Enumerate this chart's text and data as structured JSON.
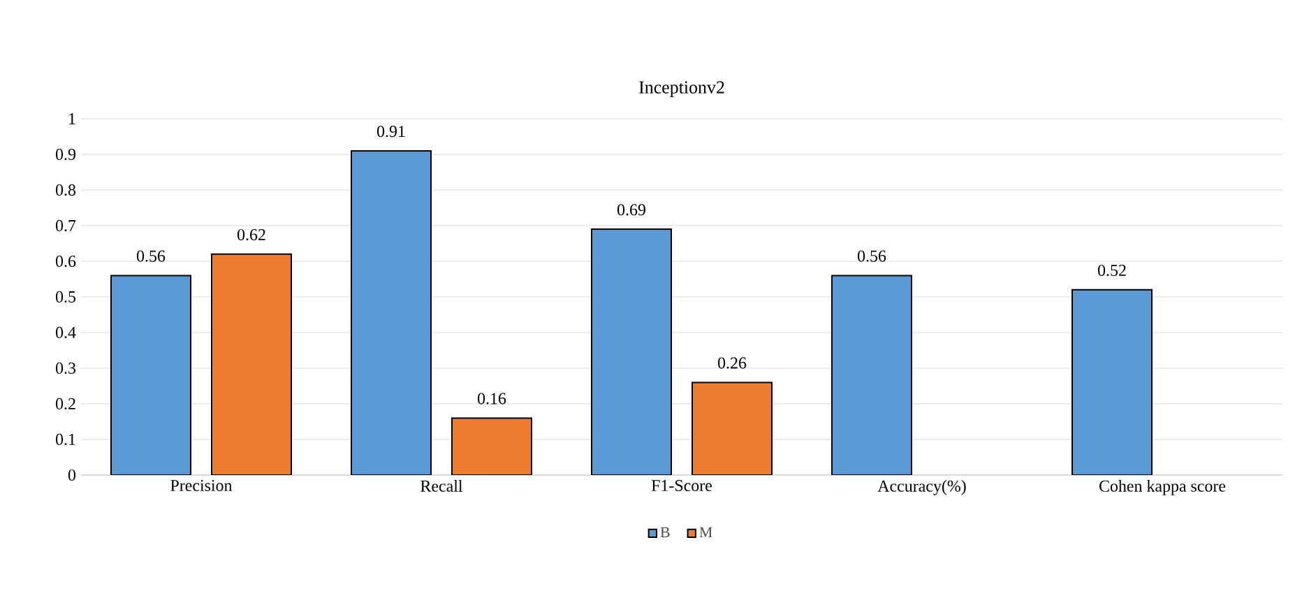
{
  "chart_data": {
    "type": "bar",
    "title": "Inceptionv2",
    "categories": [
      "Precision",
      "Recall",
      "F1-Score",
      "Accuracy(%)",
      "Cohen kappa score"
    ],
    "series": [
      {
        "name": "B",
        "color": "#5b9bd5",
        "values": [
          0.56,
          0.91,
          0.69,
          0.56,
          0.52
        ]
      },
      {
        "name": "M",
        "color": "#ed7d31",
        "values": [
          0.62,
          0.16,
          0.26,
          null,
          null
        ]
      }
    ],
    "ylim": [
      0,
      1
    ],
    "yticks": [
      0,
      0.1,
      0.2,
      0.3,
      0.4,
      0.5,
      0.6,
      0.7,
      0.8,
      0.9,
      1
    ],
    "grid": "y",
    "legend": "bottom",
    "data_labels": true
  }
}
